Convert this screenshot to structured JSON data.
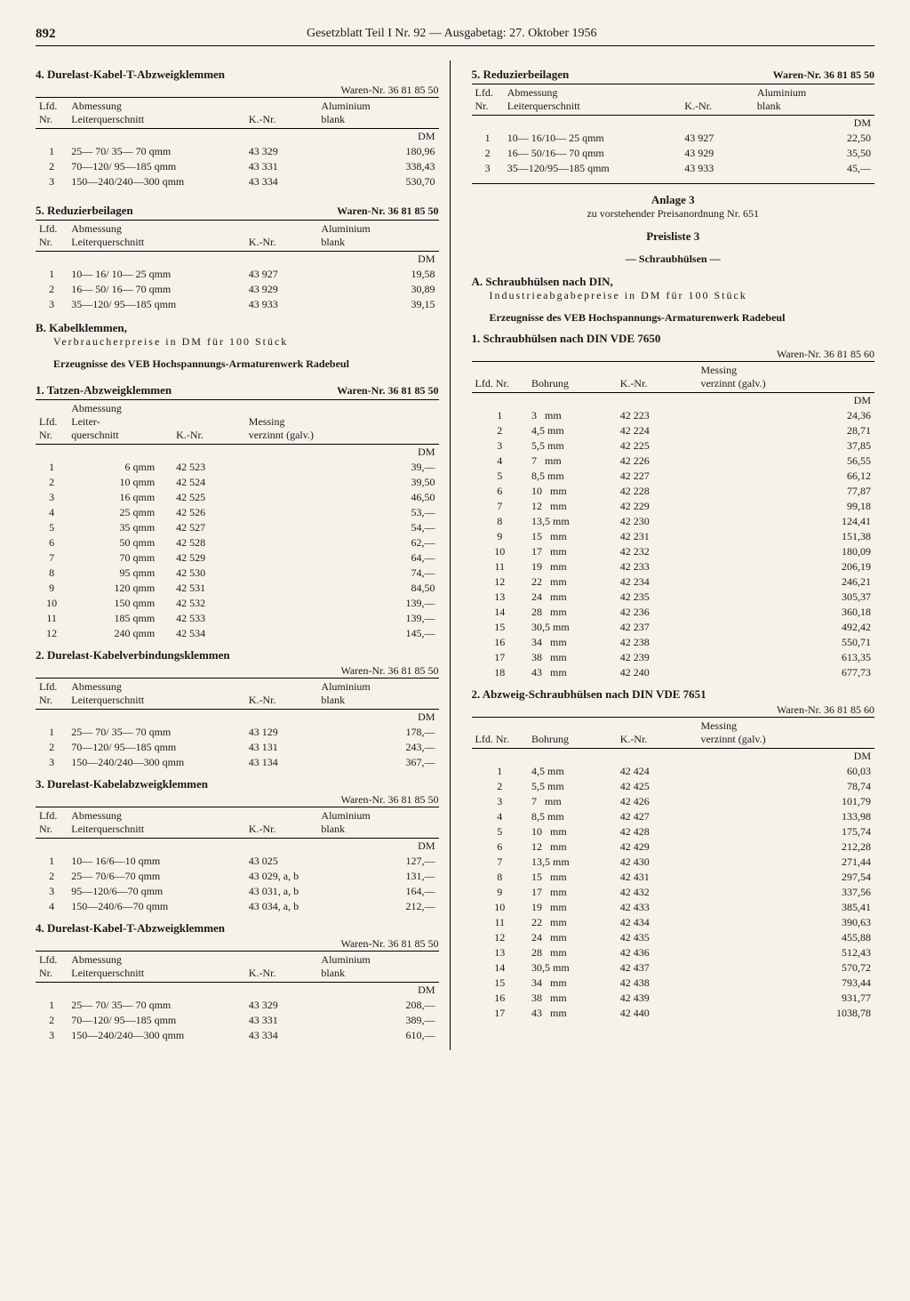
{
  "header": {
    "page": "892",
    "title": "Gesetzblatt Teil I Nr. 92 — Ausgabetag: 27. Oktober 1956"
  },
  "waren_50": "Waren-Nr. 36 81 85 50",
  "waren_60": "Waren-Nr. 36 81 85 60",
  "th_lfd": "Lfd.\nNr.",
  "th_abm": "Abmessung\nLeiterquerschnitt",
  "th_knr": "K.-Nr.",
  "th_alu": "Aluminium\nblank",
  "th_mess": "Messing\nverzinnt (galv.)",
  "th_bohr": "Bohrung",
  "th_lfdnr": "Lfd. Nr.",
  "dm": "DM",
  "left": {
    "s4_title": "4.  Durelast-Kabel-T-Abzweigklemmen",
    "s4_rows": [
      [
        "1",
        "25— 70/ 35— 70 qmm",
        "43 329",
        "180,96"
      ],
      [
        "2",
        "70—120/ 95—185 qmm",
        "43 331",
        "338,43"
      ],
      [
        "3",
        "150—240/240—300 qmm",
        "43 334",
        "530,70"
      ]
    ],
    "s5_title": "5.  Reduzierbeilagen",
    "s5_rows": [
      [
        "1",
        "10— 16/ 10— 25 qmm",
        "43 927",
        "19,58"
      ],
      [
        "2",
        "16— 50/ 16— 70 qmm",
        "43 929",
        "30,89"
      ],
      [
        "3",
        "35—120/ 95—185 qmm",
        "43 933",
        "39,15"
      ]
    ],
    "B_head": "B. Kabelklemmen,",
    "B_sub1": "Verbraucherpreise in DM für 100 Stück",
    "B_sub2": "Erzeugnisse des VEB Hochspannungs-Armaturenwerk Radebeul",
    "b1_title": "1.  Tatzen-Abzweigklemmen",
    "b1_th_abm": "Abmessung\nLeiter-\nquerschnitt",
    "b1_rows": [
      [
        "1",
        "6 qmm",
        "42 523",
        "39,—"
      ],
      [
        "2",
        "10 qmm",
        "42 524",
        "39,50"
      ],
      [
        "3",
        "16 qmm",
        "42 525",
        "46,50"
      ],
      [
        "4",
        "25 qmm",
        "42 526",
        "53,—"
      ],
      [
        "5",
        "35 qmm",
        "42 527",
        "54,—"
      ],
      [
        "6",
        "50 qmm",
        "42 528",
        "62,—"
      ],
      [
        "7",
        "70 qmm",
        "42 529",
        "64,—"
      ],
      [
        "8",
        "95 qmm",
        "42 530",
        "74,—"
      ],
      [
        "9",
        "120 qmm",
        "42 531",
        "84,50"
      ],
      [
        "10",
        "150 qmm",
        "42 532",
        "139,—"
      ],
      [
        "11",
        "185 qmm",
        "42 533",
        "139,—"
      ],
      [
        "12",
        "240 qmm",
        "42 534",
        "145,—"
      ]
    ],
    "b2_title": "2.  Durelast-Kabelverbindungsklemmen",
    "b2_rows": [
      [
        "1",
        "25— 70/ 35— 70 qmm",
        "43 129",
        "178,—"
      ],
      [
        "2",
        "70—120/ 95—185 qmm",
        "43 131",
        "243,—"
      ],
      [
        "3",
        "150—240/240—300 qmm",
        "43 134",
        "367,—"
      ]
    ],
    "b3_title": "3.  Durelast-Kabelabzweigklemmen",
    "b3_rows": [
      [
        "1",
        "10— 16/6—10 qmm",
        "43 025",
        "127,—"
      ],
      [
        "2",
        "25— 70/6—70 qmm",
        "43 029, a, b",
        "131,—"
      ],
      [
        "3",
        "95—120/6—70 qmm",
        "43 031, a, b",
        "164,—"
      ],
      [
        "4",
        "150—240/6—70 qmm",
        "43 034, a, b",
        "212,—"
      ]
    ],
    "b4_title": "4.  Durelast-Kabel-T-Abzweigklemmen",
    "b4_rows": [
      [
        "1",
        "25— 70/ 35— 70 qmm",
        "43 329",
        "208,—"
      ],
      [
        "2",
        "70—120/ 95—185 qmm",
        "43 331",
        "389,—"
      ],
      [
        "3",
        "150—240/240—300 qmm",
        "43 334",
        "610,—"
      ]
    ]
  },
  "right": {
    "s5_title": "5.  Reduzierbeilagen",
    "s5_rows": [
      [
        "1",
        "10— 16/10— 25 qmm",
        "43 927",
        "22,50"
      ],
      [
        "2",
        "16— 50/16— 70 qmm",
        "43 929",
        "35,50"
      ],
      [
        "3",
        "35—120/95—185 qmm",
        "43 933",
        "45,—"
      ]
    ],
    "anlage": "Anlage 3",
    "anlage_sub": "zu vorstehender Preisanordnung Nr. 651",
    "preisliste": "Preisliste 3",
    "preisliste_sub": "— Schraubhülsen —",
    "A_head": "A. Schraubhülsen nach DIN,",
    "A_sub1": "Industrieabgabepreise in DM für 100 Stück",
    "A_sub2": "Erzeugnisse des VEB Hochspannungs-Armaturenwerk Radebeul",
    "a1_title": "1.  Schraubhülsen nach DIN VDE 7650",
    "a1_rows": [
      [
        "1",
        "3   mm",
        "42 223",
        "24,36"
      ],
      [
        "2",
        "4,5 mm",
        "42 224",
        "28,71"
      ],
      [
        "3",
        "5,5 mm",
        "42 225",
        "37,85"
      ],
      [
        "4",
        "7   mm",
        "42 226",
        "56,55"
      ],
      [
        "5",
        "8,5 mm",
        "42 227",
        "66,12"
      ],
      [
        "6",
        "10   mm",
        "42 228",
        "77,87"
      ],
      [
        "7",
        "12   mm",
        "42 229",
        "99,18"
      ],
      [
        "8",
        "13,5 mm",
        "42 230",
        "124,41"
      ],
      [
        "9",
        "15   mm",
        "42 231",
        "151,38"
      ],
      [
        "10",
        "17   mm",
        "42 232",
        "180,09"
      ],
      [
        "11",
        "19   mm",
        "42 233",
        "206,19"
      ],
      [
        "12",
        "22   mm",
        "42 234",
        "246,21"
      ],
      [
        "13",
        "24   mm",
        "42 235",
        "305,37"
      ],
      [
        "14",
        "28   mm",
        "42 236",
        "360,18"
      ],
      [
        "15",
        "30,5 mm",
        "42 237",
        "492,42"
      ],
      [
        "16",
        "34   mm",
        "42 238",
        "550,71"
      ],
      [
        "17",
        "38   mm",
        "42 239",
        "613,35"
      ],
      [
        "18",
        "43   mm",
        "42 240",
        "677,73"
      ]
    ],
    "a2_title": "2.  Abzweig-Schraubhülsen nach DIN VDE 7651",
    "a2_rows": [
      [
        "1",
        "4,5 mm",
        "42 424",
        "60,03"
      ],
      [
        "2",
        "5,5 mm",
        "42 425",
        "78,74"
      ],
      [
        "3",
        "7   mm",
        "42 426",
        "101,79"
      ],
      [
        "4",
        "8,5 mm",
        "42 427",
        "133,98"
      ],
      [
        "5",
        "10   mm",
        "42 428",
        "175,74"
      ],
      [
        "6",
        "12   mm",
        "42 429",
        "212,28"
      ],
      [
        "7",
        "13,5 mm",
        "42 430",
        "271,44"
      ],
      [
        "8",
        "15   mm",
        "42 431",
        "297,54"
      ],
      [
        "9",
        "17   mm",
        "42 432",
        "337,56"
      ],
      [
        "10",
        "19   mm",
        "42 433",
        "385,41"
      ],
      [
        "11",
        "22   mm",
        "42 434",
        "390,63"
      ],
      [
        "12",
        "24   mm",
        "42 435",
        "455,88"
      ],
      [
        "13",
        "28   mm",
        "42 436",
        "512,43"
      ],
      [
        "14",
        "30,5 mm",
        "42 437",
        "570,72"
      ],
      [
        "15",
        "34   mm",
        "42 438",
        "793,44"
      ],
      [
        "16",
        "38   mm",
        "42 439",
        "931,77"
      ],
      [
        "17",
        "43   mm",
        "42 440",
        "1038,78"
      ]
    ]
  }
}
